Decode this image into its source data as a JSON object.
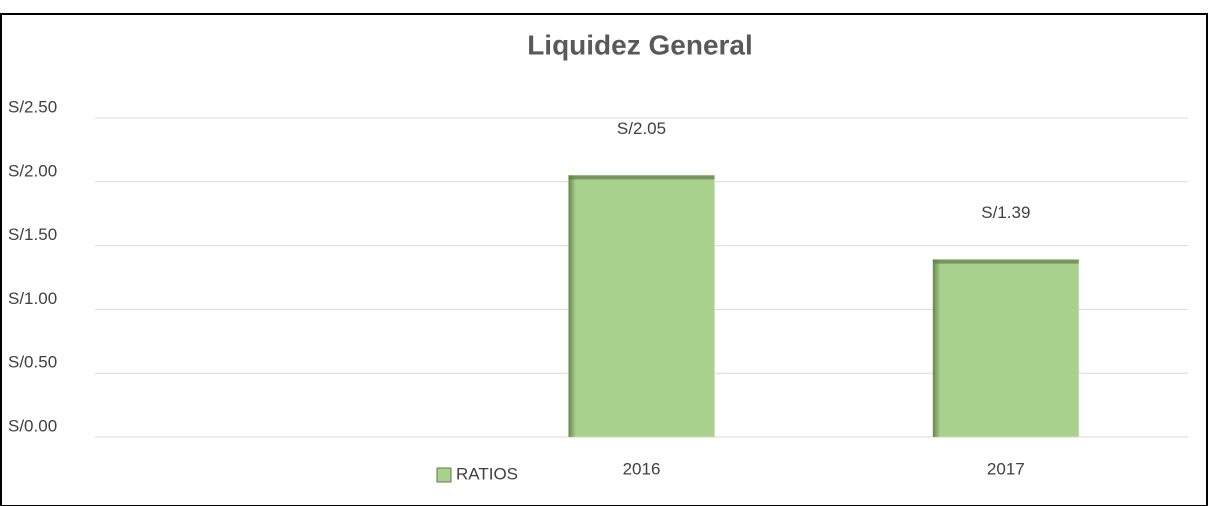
{
  "chart_data": {
    "type": "bar",
    "title": "Liquidez General",
    "categories": [
      null,
      "2016",
      "2017"
    ],
    "series": [
      {
        "name": "RATIOS",
        "color": "#a9d18e",
        "values": [
          null,
          2.05,
          1.39
        ],
        "value_labels": [
          null,
          "S/2.05",
          "S/1.39"
        ]
      }
    ],
    "ylim": [
      0,
      2.5
    ],
    "yticks": [
      {
        "value": 0,
        "label": "S/0.00"
      },
      {
        "value": 0.5,
        "label": "S/0.50"
      },
      {
        "value": 1,
        "label": "S/1.00"
      },
      {
        "value": 1.5,
        "label": "S/1.50"
      },
      {
        "value": 2,
        "label": "S/2.00"
      },
      {
        "value": 2.5,
        "label": "S/2.50"
      }
    ],
    "grid": true,
    "legend": "bottom"
  }
}
